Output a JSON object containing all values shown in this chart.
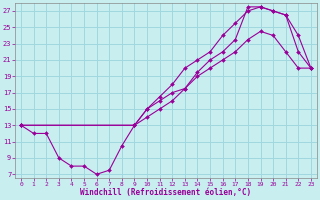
{
  "title": "",
  "xlabel": "Windchill (Refroidissement éolien,°C)",
  "ylabel": "",
  "xlim": [
    -0.5,
    23.5
  ],
  "ylim": [
    6.5,
    28
  ],
  "xticks": [
    0,
    1,
    2,
    3,
    4,
    5,
    6,
    7,
    8,
    9,
    10,
    11,
    12,
    13,
    14,
    15,
    16,
    17,
    18,
    19,
    20,
    21,
    22,
    23
  ],
  "yticks": [
    7,
    9,
    11,
    13,
    15,
    17,
    19,
    21,
    23,
    25,
    27
  ],
  "bg_color": "#c8eef0",
  "grid_color": "#a0d8e0",
  "line_color": "#990099",
  "line1_x": [
    0,
    1,
    2,
    3,
    4,
    5,
    6,
    7,
    8,
    9,
    10,
    11,
    12,
    13,
    14,
    15,
    16,
    17,
    18,
    19,
    20,
    21,
    22,
    23
  ],
  "line1_y": [
    13,
    12,
    12,
    9,
    8,
    8,
    7,
    7.5,
    10.5,
    13,
    15,
    16,
    17,
    17.5,
    19.5,
    21,
    22,
    23.5,
    27.5,
    27.5,
    27,
    26.5,
    22,
    20
  ],
  "line2_x": [
    0,
    9,
    10,
    11,
    12,
    13,
    14,
    15,
    16,
    17,
    18,
    19,
    20,
    21,
    22,
    23
  ],
  "line2_y": [
    13,
    13,
    15,
    16.5,
    18,
    20,
    21,
    22,
    24,
    25.5,
    27,
    27.5,
    27,
    26.5,
    24,
    20
  ],
  "line3_x": [
    0,
    9,
    10,
    11,
    12,
    13,
    14,
    15,
    16,
    17,
    18,
    19,
    20,
    21,
    22,
    23
  ],
  "line3_y": [
    13,
    13,
    14,
    15,
    16,
    17.5,
    19,
    20,
    21,
    22,
    23.5,
    24.5,
    24,
    22,
    20,
    20
  ]
}
